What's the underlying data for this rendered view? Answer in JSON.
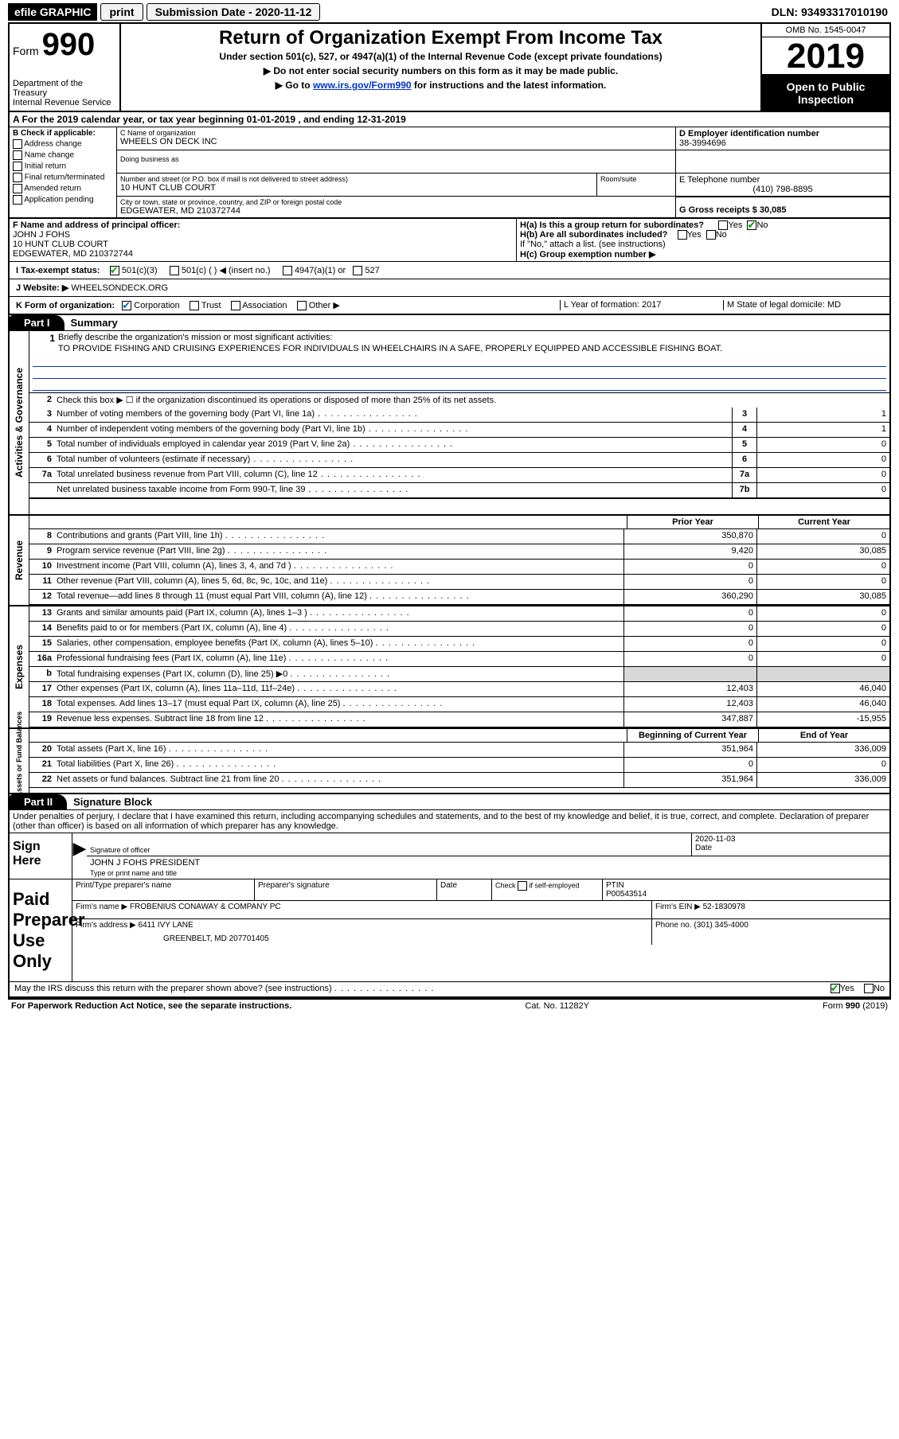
{
  "colors": {
    "black": "#000000",
    "white": "#ffffff",
    "link": "#0033cc",
    "grey_cell": "#d8d8d8",
    "check_green": "#00a000",
    "check_blue": "#0066cc"
  },
  "topbar": {
    "efile": "efile GRAPHIC",
    "print": "print",
    "sub_label": "Submission Date - 2020-11-12",
    "dln": "DLN: 93493317010190"
  },
  "header": {
    "form": "Form",
    "form_num": "990",
    "dept1": "Department of the Treasury",
    "dept2": "Internal Revenue Service",
    "title": "Return of Organization Exempt From Income Tax",
    "sub": "Under section 501(c), 527, or 4947(a)(1) of the Internal Revenue Code (except private foundations)",
    "line1": "▶ Do not enter social security numbers on this form as it may be made public.",
    "line2_pre": "▶ Go to ",
    "line2_link": "www.irs.gov/Form990",
    "line2_post": " for instructions and the latest information.",
    "omb": "OMB No. 1545-0047",
    "year": "2019",
    "open1": "Open to Public",
    "open2": "Inspection"
  },
  "lineA": "A For the 2019 calendar year, or tax year beginning 01-01-2019     , and ending 12-31-2019",
  "colB": {
    "title": "B Check if applicable:",
    "addr": "Address change",
    "name": "Name change",
    "init": "Initial return",
    "final": "Final return/terminated",
    "amend": "Amended return",
    "app": "Application pending"
  },
  "entity": {
    "c_label": "C Name of organization",
    "c_val": "WHEELS ON DECK INC",
    "dba_label": "Doing business as",
    "dba_val": "",
    "street_label": "Number and street (or P.O. box if mail is not delivered to street address)",
    "street_val": "10 HUNT CLUB COURT",
    "room_label": "Room/suite",
    "city_label": "City or town, state or province, country, and ZIP or foreign postal code",
    "city_val": "EDGEWATER, MD  210372744",
    "d_label": "D Employer identification number",
    "d_val": "38-3994696",
    "e_label": "E Telephone number",
    "e_val": "(410) 798-8895",
    "g_label": "G Gross receipts $ 30,085"
  },
  "officer": {
    "f_label": "F  Name and address of principal officer:",
    "name": "JOHN J FOHS",
    "street": "10 HUNT CLUB COURT",
    "city": "EDGEWATER, MD  210372744",
    "ha_label": "H(a)  Is this a group return for subordinates?",
    "ha_yes": "Yes",
    "ha_no": "No",
    "hb_label": "H(b)  Are all subordinates included?",
    "hb_yes": "Yes",
    "hb_no": "No",
    "hb_note": "If \"No,\" attach a list. (see instructions)",
    "hc_label": "H(c)  Group exemption number ▶"
  },
  "status": {
    "i_label": "I   Tax-exempt status:",
    "c1": "501(c)(3)",
    "c2": "501(c) (  ) ◀ (insert no.)",
    "c3": "4947(a)(1) or",
    "c4": "527",
    "j_label": "J   Website: ▶",
    "j_val": " WHEELSONDECK.ORG"
  },
  "korg": {
    "k_label": "K Form of organization:",
    "corp": "Corporation",
    "trust": "Trust",
    "assoc": "Association",
    "other": "Other ▶",
    "l_label": "L Year of formation: 2017",
    "m_label": "M State of legal domicile: MD"
  },
  "part1": {
    "tab": "Part I",
    "title": "Summary"
  },
  "sideLabels": {
    "s1": "Activities & Governance",
    "s2": "Revenue",
    "s3": "Expenses",
    "s4": "Net Assets or Fund Balances"
  },
  "summary": {
    "line1_label": "Briefly describe the organization's mission or most significant activities:",
    "line1_text": "TO PROVIDE FISHING AND CRUISING EXPERIENCES FOR INDIVIDUALS IN WHEELCHAIRS IN A SAFE, PROPERLY EQUIPPED AND ACCESSIBLE FISHING BOAT.",
    "line2": "Check this box ▶ ☐  if the organization discontinued its operations or disposed of more than 25% of its net assets.",
    "rows_gov": [
      {
        "n": "3",
        "d": "Number of voting members of the governing body (Part VI, line 1a)",
        "box": "3",
        "v": "1"
      },
      {
        "n": "4",
        "d": "Number of independent voting members of the governing body (Part VI, line 1b)",
        "box": "4",
        "v": "1"
      },
      {
        "n": "5",
        "d": "Total number of individuals employed in calendar year 2019 (Part V, line 2a)",
        "box": "5",
        "v": "0"
      },
      {
        "n": "6",
        "d": "Total number of volunteers (estimate if necessary)",
        "box": "6",
        "v": "0"
      },
      {
        "n": "7a",
        "d": "Total unrelated business revenue from Part VIII, column (C), line 12",
        "box": "7a",
        "v": "0"
      },
      {
        "n": "",
        "d": "Net unrelated business taxable income from Form 990-T, line 39",
        "box": "7b",
        "v": "0"
      }
    ],
    "h_prior": "Prior Year",
    "h_current": "Current Year",
    "rows_rev": [
      {
        "n": "8",
        "d": "Contributions and grants (Part VIII, line 1h)",
        "p": "350,870",
        "c": "0"
      },
      {
        "n": "9",
        "d": "Program service revenue (Part VIII, line 2g)",
        "p": "9,420",
        "c": "30,085"
      },
      {
        "n": "10",
        "d": "Investment income (Part VIII, column (A), lines 3, 4, and 7d )",
        "p": "0",
        "c": "0"
      },
      {
        "n": "11",
        "d": "Other revenue (Part VIII, column (A), lines 5, 6d, 8c, 9c, 10c, and 11e)",
        "p": "0",
        "c": "0"
      },
      {
        "n": "12",
        "d": "Total revenue—add lines 8 through 11 (must equal Part VIII, column (A), line 12)",
        "p": "360,290",
        "c": "30,085"
      }
    ],
    "rows_exp": [
      {
        "n": "13",
        "d": "Grants and similar amounts paid (Part IX, column (A), lines 1–3 )",
        "p": "0",
        "c": "0"
      },
      {
        "n": "14",
        "d": "Benefits paid to or for members (Part IX, column (A), line 4)",
        "p": "0",
        "c": "0"
      },
      {
        "n": "15",
        "d": "Salaries, other compensation, employee benefits (Part IX, column (A), lines 5–10)",
        "p": "0",
        "c": "0"
      },
      {
        "n": "16a",
        "d": "Professional fundraising fees (Part IX, column (A), line 11e)",
        "p": "0",
        "c": "0"
      },
      {
        "n": "b",
        "d": "Total fundraising expenses (Part IX, column (D), line 25) ▶0",
        "p": "GREY",
        "c": "GREY"
      },
      {
        "n": "17",
        "d": "Other expenses (Part IX, column (A), lines 11a–11d, 11f–24e)",
        "p": "12,403",
        "c": "46,040"
      },
      {
        "n": "18",
        "d": "Total expenses. Add lines 13–17 (must equal Part IX, column (A), line 25)",
        "p": "12,403",
        "c": "46,040"
      },
      {
        "n": "19",
        "d": "Revenue less expenses. Subtract line 18 from line 12",
        "p": "347,887",
        "c": "-15,955"
      }
    ],
    "h_begin": "Beginning of Current Year",
    "h_end": "End of Year",
    "rows_net": [
      {
        "n": "20",
        "d": "Total assets (Part X, line 16)",
        "p": "351,964",
        "c": "336,009"
      },
      {
        "n": "21",
        "d": "Total liabilities (Part X, line 26)",
        "p": "0",
        "c": "0"
      },
      {
        "n": "22",
        "d": "Net assets or fund balances. Subtract line 21 from line 20",
        "p": "351,964",
        "c": "336,009"
      }
    ]
  },
  "part2": {
    "tab": "Part II",
    "title": "Signature Block",
    "statement": "Under penalties of perjury, I declare that I have examined this return, including accompanying schedules and statements, and to the best of my knowledge and belief, it is true, correct, and complete. Declaration of preparer (other than officer) is based on all information of which preparer has any knowledge."
  },
  "sign": {
    "left1": "Sign",
    "left2": "Here",
    "sig_label": "Signature of officer",
    "date_label": "Date",
    "date_val": "2020-11-03",
    "name": "JOHN J FOHS PRESIDENT",
    "name_label": "Type or print name and title"
  },
  "preparer": {
    "left1": "Paid",
    "left2": "Preparer",
    "left3": "Use Only",
    "h1": "Print/Type preparer's name",
    "h2": "Preparer's signature",
    "h3": "Date",
    "h4_pre": "Check ☐ if self-employed",
    "h5": "PTIN",
    "ptin": "P00543514",
    "firm_name_label": "Firm's name    ▶",
    "firm_name": "FROBENIUS CONAWAY & COMPANY PC",
    "firm_ein_label": "Firm's EIN ▶",
    "firm_ein": "52-1830978",
    "firm_addr_label": "Firm's address ▶",
    "firm_addr1": "6411 IVY LANE",
    "firm_addr2": "GREENBELT, MD  207701405",
    "phone_label": "Phone no.",
    "phone": "(301) 345-4000",
    "discuss": "May the IRS discuss this return with the preparer shown above? (see instructions)",
    "yes": "Yes",
    "no": "No"
  },
  "footer": {
    "left": "For Paperwork Reduction Act Notice, see the separate instructions.",
    "mid": "Cat. No. 11282Y",
    "right": "Form 990 (2019)"
  }
}
